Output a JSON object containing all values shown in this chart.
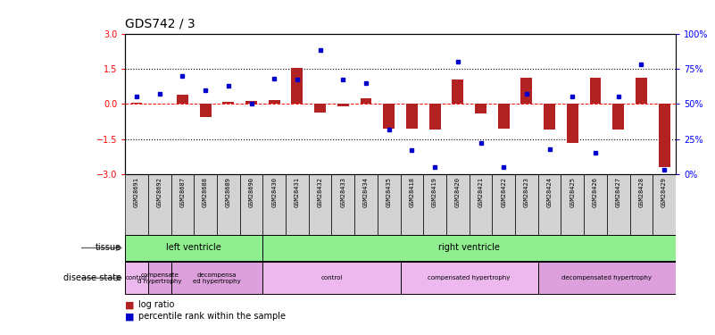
{
  "title": "GDS742 / 3",
  "samples": [
    "GSM28691",
    "GSM28692",
    "GSM28687",
    "GSM28688",
    "GSM28689",
    "GSM28690",
    "GSM28430",
    "GSM28431",
    "GSM28432",
    "GSM28433",
    "GSM28434",
    "GSM28435",
    "GSM28418",
    "GSM28419",
    "GSM28420",
    "GSM28421",
    "GSM28422",
    "GSM28423",
    "GSM28424",
    "GSM28425",
    "GSM28426",
    "GSM28427",
    "GSM28428",
    "GSM28429"
  ],
  "log_ratio": [
    0.05,
    0.02,
    0.38,
    -0.55,
    0.07,
    0.12,
    0.18,
    1.55,
    -0.38,
    -0.1,
    0.22,
    -1.05,
    -1.05,
    -1.1,
    1.05,
    -0.42,
    -1.05,
    1.1,
    -1.1,
    -1.65,
    1.1,
    -1.1,
    1.1,
    -2.7
  ],
  "percentile": [
    55,
    57,
    70,
    60,
    63,
    50,
    68,
    67,
    88,
    67,
    65,
    32,
    17,
    5,
    80,
    22,
    5,
    57,
    18,
    55,
    15,
    55,
    78,
    3
  ],
  "ylim_left": [
    -3,
    3
  ],
  "ylim_right": [
    0,
    100
  ],
  "yticks_left": [
    -3,
    -1.5,
    0,
    1.5,
    3
  ],
  "yticks_right": [
    0,
    25,
    50,
    75,
    100
  ],
  "bar_color": "#B22222",
  "dot_color": "#0000CD",
  "bg_color": "#ffffff",
  "tissue_segs": [
    {
      "label": "left ventricle",
      "start": 0,
      "end": 6,
      "color": "#90EE90"
    },
    {
      "label": "right ventricle",
      "start": 6,
      "end": 24,
      "color": "#90EE90"
    }
  ],
  "disease_segs": [
    {
      "label": "control",
      "start": 0,
      "end": 1,
      "color": "#EDB8ED"
    },
    {
      "label": "compensate\nd hypertrophy",
      "start": 1,
      "end": 2,
      "color": "#DDA0DD"
    },
    {
      "label": "decompensa\ned hypertrophy",
      "start": 2,
      "end": 6,
      "color": "#DDA0DD"
    },
    {
      "label": "control",
      "start": 6,
      "end": 12,
      "color": "#EDB8ED"
    },
    {
      "label": "compensated hypertrophy",
      "start": 12,
      "end": 18,
      "color": "#EDB8ED"
    },
    {
      "label": "decompensated hypertrophy",
      "start": 18,
      "end": 24,
      "color": "#DDA0DD"
    }
  ]
}
